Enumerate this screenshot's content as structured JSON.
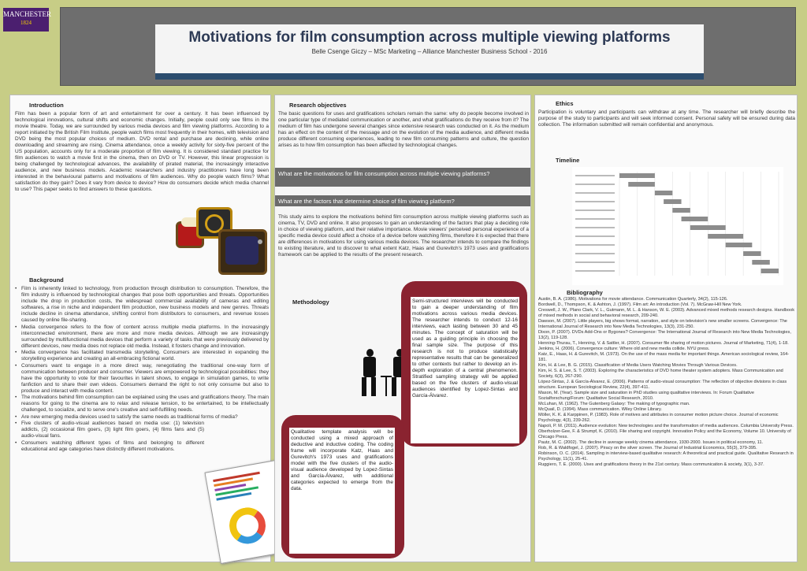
{
  "logo": {
    "line1": "MANCHESTER",
    "line2": "1824"
  },
  "header": {
    "title": "Motivations for film consumption across multiple viewing platforms",
    "subtitle": "Belle Csenge Giczy – MSc Marketing – Alliance Manchester Business School - 2016"
  },
  "introduction": {
    "heading": "Introduction",
    "body": "Film has been a popular form of art and entertainment for over a century. It has been influenced by technological innovations, cultural shifts and economic changes. Initially, people could only see films in the movie theatre. Today, we are surrounded by various media devices and film viewing platforms. According to a report initiated by the British Film Institute, people watch films most frequently in their homes, with television and DVD being the most popular choices of medium. DVD rental and purchase are declining, while online downloading and streaming are rising. Cinema attendance, once a weekly activity for sixty-five percent of the US population, accounts only for a moderate proportion of film viewing. It is considered standard practice for film audiences to watch a movie first in the cinema, then on DVD or TV. However, this linear progression is being challenged by technological advances, the availability of pirated material, the increasingly interactive audience, and new business models. Academic researchers and industry practitioners have long been interested in the behavioural patterns and motivations of film audiences. Why do people watch films? What satisfaction do they gain? Does it vary from device to device? How do consumers decide which media channel to use? This paper seeks to find answers to these questions."
  },
  "background": {
    "heading": "Background",
    "items": [
      "Film is inherently linked to technology, from production through distribution to consumption. Therefore, the film industry is influenced by technological changes that pose both opportunities and threats. Opportunities include the drop in production costs, the widespread commercial availability of cameras and editing softwares, a rise in niche and independent film production, new business models and new genres. Threats include decline in cinema attendance, shifting control from distributors to consumers, and revenue losses caused by online file-sharing.",
      "Media convergence refers to the flow of content across multiple media platforms. In the increasingly interconnected environment, there are more and more media devices. Although we are increasingly surrounded by multifunctional media devices that perform a variety of tasks that were previously delivered by different devices, new media does not replace old media. Instead, it fosters change and innovation.",
      "Media convergence has facilitated transmedia storytelling. Consumers are interested in expanding the storytelling experience and creating an all-embracing fictional world.",
      "Consumers want to engage in a more direct way, renegotiating the traditional one-way form of communication between producer and consumer. Viewers are empowered by technological possibilities: they have the opportunity to vote for their favourites in talent shows, to engage in simulation games, to write fanfiction and to share their own videos. Consumers demand the right to not only consume but also to produce and interact with media content.",
      "The motivations behind film consumption can be explained using the uses and gratifications theory. The main reasons for going to the cinema are to relax and release tension, to be entertained, to be intellectually challenged, to socialize, and to serve one's creative and self-fulfilling needs.",
      "Are new emerging media devices used to satisfy the same needs as traditional forms of media?",
      "Five clusters of audio-visual audiences based on media use: (1) television addicts, (2) occasional film goers, (3) light film goers, (4) films fans and (5) audio-visual fans.",
      "Consumers watching different types of films and belonging to different educational and age categories have distinctly different motivations."
    ]
  },
  "research_objectives": {
    "heading": "Research objectives",
    "body": "The basic questions for uses and gratifications scholars remain the same: why do people become involved in one particular type of mediated communication or another, and what gratifications do they receive from it? The medium of film has undergone several changes since extensive research was conducted on it. As the medium has an effect on the content of the message and on the evolution of the media audience, and different media produce different consuming experiences, leading to new film consuming patterns and culture, the question arises as to how film consumption has been affected by technological changes.",
    "q1": "What are the motivations for film consumption across multiple viewing platforms?",
    "q2": "What are the factors that determine choice of film viewing platform?",
    "study": "This study aims to explore the motivations behind film consumption across multiple viewing platforms such as cinema, TV, DVD and online. It also proposes to gain an understanding of the factors that play a deciding role in choice of viewing platform, and their relative importance. Movie viewers' perceived personal experience of a specific media device could affect a choice of a device before watching films, therefore it is expected that there are differences in motivations for using various media devices. The researcher intends to compare the findings to existing literature, and to discover to what extent Katz, Haas and Gurevitch's 1973 uses and gratifications framework can be applied to the results of the present research."
  },
  "methodology": {
    "heading": "Methodology",
    "interviews": "Semi-structured interviews will be conducted to gain a deeper understanding of film motivations across various media devices. The researcher intends to conduct 12-16 interviews, each lasting between 30 and 45 minutes. The concept of saturation will be used as a guiding principle in choosing the final sample size. The purpose of this research is not to produce statistically representative results that can be generalized to other contexts but rather to develop an in-depth exploration of a central phenomenon. Stratified sampling strategy will be applied based on the five clusters of audio-visual audiences identified by Lopez-Sintas and García-Álvarez.",
    "analysis": "Qualitative template analysis will be conducted using a mixed approach of deductive and inductive coding. The coding frame will incorporate Katz, Haas and Gurevitch's 1973 uses and gratifications model with the five clusters of the audio-visual audience developed by Lopez-Sintas and García-Álvarez, with additional categories expected to emerge from the data."
  },
  "ethics": {
    "heading": "Ethics",
    "body": "Participation is voluntary and participants can withdraw at any time. The researcher will briefly describe the purpose of the study to participants and will seek informed consent. Personal safety will be ensured during data collection. The information submitted will remain confidential and anonymous."
  },
  "timeline": {
    "heading": "Timeline"
  },
  "chart_data": {
    "type": "bar",
    "categories": [
      "",
      "",
      "",
      "",
      "",
      "",
      "",
      "",
      "",
      "",
      "",
      ""
    ],
    "series": [
      {
        "values": [
          [
            0,
            2
          ],
          [
            0.5,
            2
          ],
          [
            2,
            3
          ],
          [
            2.5,
            3.5
          ],
          [
            3,
            4
          ],
          [
            3.5,
            5
          ],
          [
            4,
            6
          ],
          [
            5,
            7
          ],
          [
            6,
            7.5
          ],
          [
            7,
            8
          ],
          [
            7.5,
            8.5
          ],
          [
            8,
            9
          ]
        ]
      }
    ],
    "title": "",
    "xlabel": "",
    "ylabel": ""
  },
  "bibliography": {
    "heading": "Bibliography",
    "entries": [
      "Austin, B. A. (1986). Motivations for movie attendance. Communication Quarterly, 34(2), 115-126.",
      "Bordwell, D., Thompson, K. & Ashton, J. (1997). Film art: An introduction (Vol. 7). McGraw-Hill New York.",
      "Creswell, J. W., Plano Clark, V. L., Gutmann, M. L. & Hanson, W. E. (2003). Advanced mixed methods research designs. Handbook of mixed methods in social and behavioral research, 209-240.",
      "Dawson, M. (2007). Little players, big shows format, narration, and style on television's new smaller screens. Convergence: The International Journal of Research into New Media Technologies, 13(3), 231-250.",
      "Dixon, P. (2007). DVDs Add-Ons or Bygones? Convergence: The International Journal of Research into New Media Technologies, 13(2), 119-128.",
      "Henning-Thurau, T., Henning, V. & Sattler, H. (2007). Consumer file sharing of motion pictures. Journal of Marketing, 71(4), 1-18.",
      "Jenkins, H. (2006). Convergence culture: Where old and new media collide. NYU press.",
      "Katz, E., Haas, H. & Gurevitch, M. (1973). On the use of the mass media for important things. American sociological review, 164-181.",
      "Kim, H. & Lee, B. G. (2015). Classification of Media Users Watching Movies Through Various Devices.",
      "Kim, H. S. & Lee, S. T. (2003). Exploring the characteristics of DVD home theater system adopters. Mass Communication and Society, 6(3), 267-290.",
      "López-Sintas, J. & García-Álvarez, E. (2006). Patterns of audio-visual consumption: The reflection of objective divisions in class structure. European Sociological Review, 22(4), 397-411.",
      "Mason, M. (Year). Sample size and saturation in PhD studies using qualitative interviews. In: Forum Qualitative Sozialforschung/Forum: Qualitative Social Research, 2010.",
      "McLuhan, M. (1962). The Gutenberg Galaxy: The making of typographic man.",
      "McQuail, D. (1994). Mass communication. Wiley Online Library.",
      "Möller, K. K. & Karppinen, P. (1983). Role of motives and attributes in consumer motion picture choice. Journal of economic Psychology, 4(3), 239-262.",
      "Napoli, P. M. (2011). Audience evolution: New technologies and the transformation of media audiences. Columbia University Press.",
      "Oberholzer-Gee, F. & Strumpf, K. (2010). File sharing and copyright. Innovation Policy and the Economy, Volume 10. University of Chicago Press.",
      "Pautz, M. C. (2002). The decline in average weekly cinema attendance, 1930-2000. Issues in political economy, 11.",
      "Rob, R. & Waldfogel, J. (2007). Piracy on the silver screen. The Journal of Industrial Economics, 55(3), 379-395.",
      "Robinson, O. C. (2014). Sampling in interview-based qualitative research: A theoretical and practical guide. Qualitative Research in Psychology, 11(1), 25-41.",
      "Ruggiero, T. E. (2000). Uses and gratifications theory in the 21st century. Mass communication & society, 3(1), 3-37."
    ]
  }
}
